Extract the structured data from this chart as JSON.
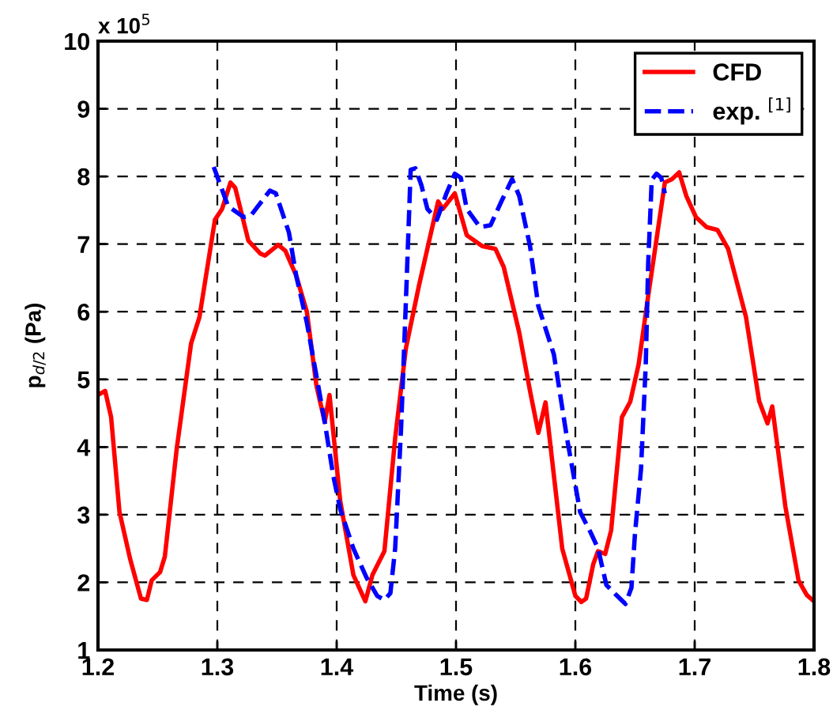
{
  "chart_data": {
    "type": "line",
    "xlabel": "Time (s)",
    "ylabel": "p$_{d/2}$ (Pa)",
    "annotations": [
      "x 10$^{5}$"
    ],
    "xlim": [
      1.2,
      1.8
    ],
    "xticks": [
      1.2,
      1.3,
      1.4,
      1.5,
      1.6,
      1.7,
      1.8
    ],
    "ylim": [
      1,
      10
    ],
    "yticks": [
      1,
      2,
      3,
      4,
      5,
      6,
      7,
      8,
      9,
      10
    ],
    "grid": true,
    "legend": "top right",
    "series": [
      {
        "name": "CFD",
        "color": "#ff0000",
        "line_style": "solid",
        "x": [
          1.202,
          1.206,
          1.211,
          1.218,
          1.227,
          1.236,
          1.241,
          1.245,
          1.252,
          1.256,
          1.266,
          1.278,
          1.285,
          1.298,
          1.304,
          1.311,
          1.315,
          1.326,
          1.336,
          1.34,
          1.351,
          1.357,
          1.366,
          1.375,
          1.383,
          1.39,
          1.394,
          1.403,
          1.414,
          1.424,
          1.43,
          1.44,
          1.449,
          1.458,
          1.469,
          1.485,
          1.489,
          1.499,
          1.509,
          1.522,
          1.533,
          1.54,
          1.553,
          1.562,
          1.569,
          1.575,
          1.589,
          1.6,
          1.605,
          1.609,
          1.615,
          1.619,
          1.625,
          1.63,
          1.639,
          1.646,
          1.653,
          1.661,
          1.675,
          1.681,
          1.687,
          1.693,
          1.701,
          1.71,
          1.719,
          1.728,
          1.743,
          1.754,
          1.761,
          1.765,
          1.776,
          1.787,
          1.794,
          1.8
        ],
        "values": [
          4.79,
          4.83,
          4.44,
          3.04,
          2.34,
          1.76,
          1.74,
          2.03,
          2.15,
          2.38,
          3.98,
          5.53,
          5.92,
          7.36,
          7.52,
          7.91,
          7.83,
          7.05,
          6.86,
          6.83,
          6.99,
          6.9,
          6.54,
          6.0,
          4.91,
          4.37,
          4.77,
          3.2,
          2.11,
          1.72,
          2.11,
          2.46,
          4.13,
          5.46,
          6.39,
          7.63,
          7.52,
          7.75,
          7.13,
          6.97,
          6.93,
          6.66,
          5.69,
          4.83,
          4.21,
          4.66,
          2.5,
          1.8,
          1.71,
          1.76,
          2.27,
          2.46,
          2.42,
          2.77,
          4.44,
          4.67,
          5.22,
          6.23,
          7.91,
          7.96,
          8.06,
          7.71,
          7.4,
          7.25,
          7.21,
          6.93,
          5.92,
          4.68,
          4.35,
          4.6,
          3.12,
          2.03,
          1.81,
          1.72
        ]
      },
      {
        "name": "exp. $^{[1]}$",
        "color": "#0000ff",
        "line_style": "dashed",
        "x": [
          1.297,
          1.309,
          1.322,
          1.328,
          1.344,
          1.349,
          1.36,
          1.366,
          1.375,
          1.39,
          1.397,
          1.403,
          1.414,
          1.425,
          1.434,
          1.44,
          1.445,
          1.449,
          1.454,
          1.458,
          1.462,
          1.466,
          1.471,
          1.476,
          1.484,
          1.492,
          1.499,
          1.504,
          1.509,
          1.52,
          1.529,
          1.538,
          1.547,
          1.553,
          1.562,
          1.569,
          1.582,
          1.593,
          1.604,
          1.613,
          1.619,
          1.626,
          1.635,
          1.642,
          1.647,
          1.65,
          1.655,
          1.659,
          1.661,
          1.664,
          1.668,
          1.672,
          1.675
        ],
        "values": [
          8.14,
          7.56,
          7.4,
          7.42,
          7.79,
          7.75,
          7.17,
          6.54,
          5.84,
          4.37,
          3.59,
          3.08,
          2.5,
          2.07,
          1.8,
          1.74,
          1.84,
          2.5,
          4.29,
          6.15,
          8.1,
          8.12,
          7.87,
          7.52,
          7.36,
          7.75,
          8.04,
          7.98,
          7.52,
          7.25,
          7.28,
          7.63,
          7.96,
          7.71,
          6.97,
          6.08,
          5.37,
          4.13,
          3.04,
          2.73,
          2.5,
          1.96,
          1.8,
          1.68,
          1.92,
          2.73,
          3.67,
          5.22,
          6.7,
          7.95,
          8.04,
          7.98,
          7.75
        ]
      }
    ]
  }
}
